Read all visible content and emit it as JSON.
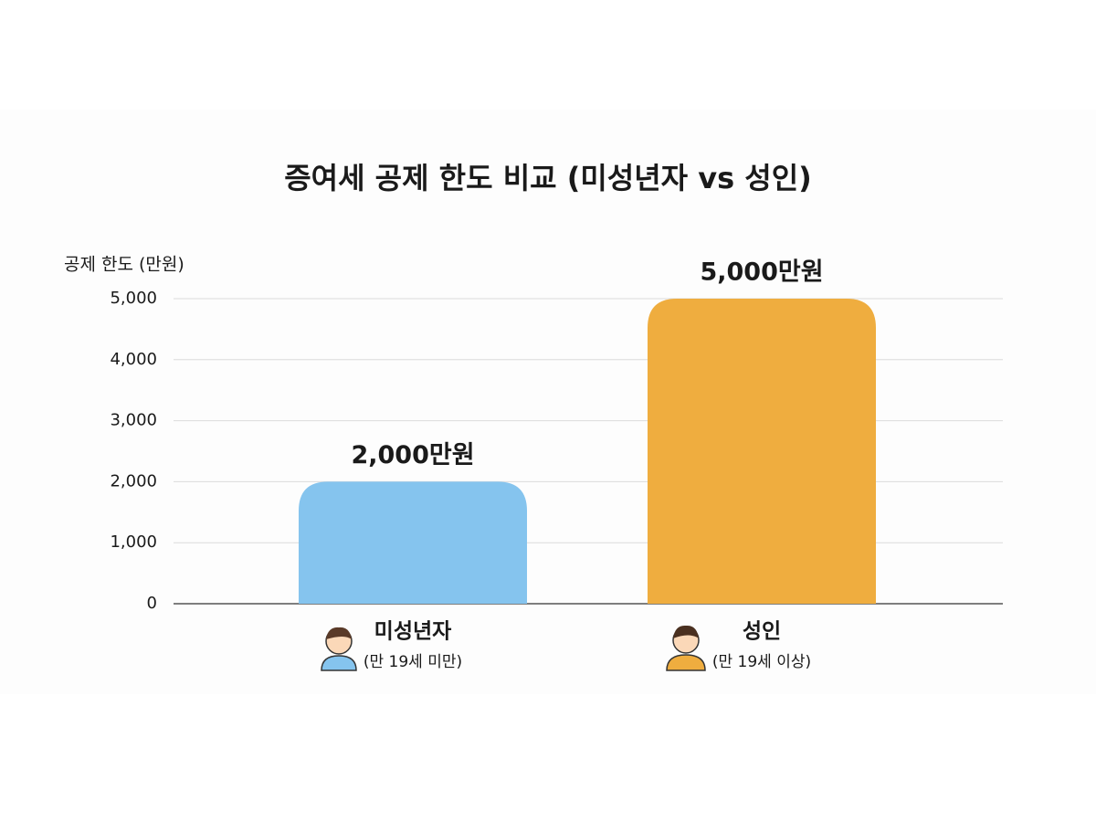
{
  "chart_data": {
    "type": "bar",
    "title": "증여세 공제 한도 비교 (미성년자 vs 성인)",
    "y_label": "공제 한도 (만원)",
    "categories": [
      "미성년자",
      "성인"
    ],
    "category_notes": [
      "(만 19세 미만)",
      "(만 19세 이상)"
    ],
    "values": [
      2000,
      5000
    ],
    "value_labels": [
      "2,000만원",
      "5,000만원"
    ],
    "colors": [
      "#85c4ee",
      "#efad3f"
    ],
    "ylim": [
      0,
      5000
    ],
    "yticks": [
      0,
      {
        "value": 1000,
        "label": "1,000"
      },
      {
        "value": 2000,
        "label": "2,000"
      },
      {
        "value": 3000,
        "label": "3,000"
      },
      {
        "value": 4000,
        "label": "4,000"
      },
      {
        "value": 5000,
        "label": "5,000"
      }
    ],
    "grid": true
  }
}
